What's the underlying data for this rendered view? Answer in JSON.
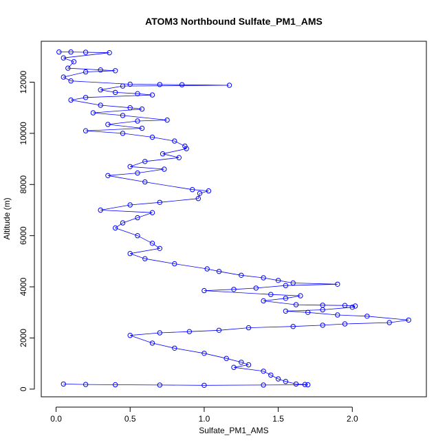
{
  "chart_data": {
    "type": "scatter",
    "title": "ATOM3 Northbound Sulfate_PM1_AMS",
    "xlabel": "Sulfate_PM1_AMS",
    "ylabel": "Altitude (m)",
    "xlim": [
      -0.1,
      2.5
    ],
    "ylim": [
      -300,
      13600
    ],
    "x_ticks": [
      0.0,
      0.5,
      1.0,
      1.5,
      2.0
    ],
    "x_tick_labels": [
      "0.0",
      "0.5",
      "1.0",
      "1.5",
      "2.0"
    ],
    "y_ticks": [
      0,
      2000,
      4000,
      6000,
      8000,
      10000,
      12000
    ],
    "y_tick_labels": [
      "0",
      "2000",
      "4000",
      "6000",
      "8000",
      "10000",
      "12000"
    ],
    "grid": false,
    "marker": "open-circle",
    "connect_points": true,
    "color": "#0000ff",
    "series": [
      {
        "name": "",
        "points": [
          [
            0.02,
            13180
          ],
          [
            0.1,
            13180
          ],
          [
            0.2,
            13170
          ],
          [
            0.36,
            13150
          ],
          [
            0.05,
            12950
          ],
          [
            0.12,
            12800
          ],
          [
            0.08,
            12550
          ],
          [
            0.3,
            12480
          ],
          [
            0.4,
            12450
          ],
          [
            0.2,
            12400
          ],
          [
            0.05,
            12200
          ],
          [
            0.1,
            12050
          ],
          [
            0.5,
            11920
          ],
          [
            0.7,
            11910
          ],
          [
            0.85,
            11900
          ],
          [
            1.17,
            11880
          ],
          [
            0.45,
            11850
          ],
          [
            0.3,
            11700
          ],
          [
            0.4,
            11600
          ],
          [
            0.55,
            11550
          ],
          [
            0.65,
            11500
          ],
          [
            0.2,
            11400
          ],
          [
            0.1,
            11300
          ],
          [
            0.3,
            11100
          ],
          [
            0.5,
            11000
          ],
          [
            0.58,
            10950
          ],
          [
            0.25,
            10800
          ],
          [
            0.45,
            10700
          ],
          [
            0.75,
            10520
          ],
          [
            0.55,
            10480
          ],
          [
            0.35,
            10350
          ],
          [
            0.58,
            10200
          ],
          [
            0.2,
            10100
          ],
          [
            0.45,
            10000
          ],
          [
            0.65,
            9850
          ],
          [
            0.8,
            9700
          ],
          [
            0.87,
            9500
          ],
          [
            0.88,
            9400
          ],
          [
            0.72,
            9200
          ],
          [
            0.83,
            9050
          ],
          [
            0.6,
            8900
          ],
          [
            0.5,
            8700
          ],
          [
            0.73,
            8600
          ],
          [
            0.55,
            8450
          ],
          [
            0.35,
            8350
          ],
          [
            0.6,
            8100
          ],
          [
            0.92,
            7800
          ],
          [
            1.03,
            7750
          ],
          [
            0.97,
            7650
          ],
          [
            0.96,
            7450
          ],
          [
            0.7,
            7300
          ],
          [
            0.5,
            7200
          ],
          [
            0.3,
            7000
          ],
          [
            0.65,
            6900
          ],
          [
            0.55,
            6700
          ],
          [
            0.45,
            6500
          ],
          [
            0.4,
            6300
          ],
          [
            0.55,
            6000
          ],
          [
            0.65,
            5700
          ],
          [
            0.7,
            5500
          ],
          [
            0.5,
            5300
          ],
          [
            0.6,
            5100
          ],
          [
            0.8,
            4900
          ],
          [
            1.02,
            4700
          ],
          [
            1.1,
            4600
          ],
          [
            1.25,
            4450
          ],
          [
            1.4,
            4350
          ],
          [
            1.5,
            4250
          ],
          [
            1.6,
            4150
          ],
          [
            1.9,
            4100
          ],
          [
            1.55,
            4050
          ],
          [
            1.35,
            3950
          ],
          [
            1.2,
            3900
          ],
          [
            1.0,
            3850
          ],
          [
            1.45,
            3700
          ],
          [
            1.65,
            3650
          ],
          [
            1.55,
            3550
          ],
          [
            1.4,
            3450
          ],
          [
            1.62,
            3300
          ],
          [
            1.8,
            3280
          ],
          [
            1.95,
            3270
          ],
          [
            2.02,
            3250
          ],
          [
            2.0,
            3200
          ],
          [
            1.8,
            3100
          ],
          [
            1.55,
            3050
          ],
          [
            1.7,
            3000
          ],
          [
            1.9,
            2900
          ],
          [
            2.1,
            2850
          ],
          [
            2.38,
            2700
          ],
          [
            2.25,
            2600
          ],
          [
            1.95,
            2550
          ],
          [
            1.8,
            2500
          ],
          [
            1.6,
            2450
          ],
          [
            1.3,
            2400
          ],
          [
            1.1,
            2300
          ],
          [
            0.9,
            2250
          ],
          [
            0.7,
            2200
          ],
          [
            0.5,
            2100
          ],
          [
            0.65,
            1800
          ],
          [
            0.8,
            1600
          ],
          [
            1.0,
            1400
          ],
          [
            1.15,
            1200
          ],
          [
            1.25,
            1050
          ],
          [
            1.3,
            950
          ],
          [
            1.2,
            850
          ],
          [
            1.4,
            700
          ],
          [
            1.45,
            550
          ],
          [
            1.5,
            400
          ],
          [
            1.55,
            300
          ],
          [
            1.62,
            200
          ],
          [
            1.68,
            180
          ],
          [
            1.7,
            170
          ],
          [
            1.4,
            160
          ],
          [
            1.0,
            150
          ],
          [
            0.7,
            160
          ],
          [
            0.4,
            170
          ],
          [
            0.2,
            180
          ],
          [
            0.05,
            200
          ]
        ]
      }
    ]
  }
}
